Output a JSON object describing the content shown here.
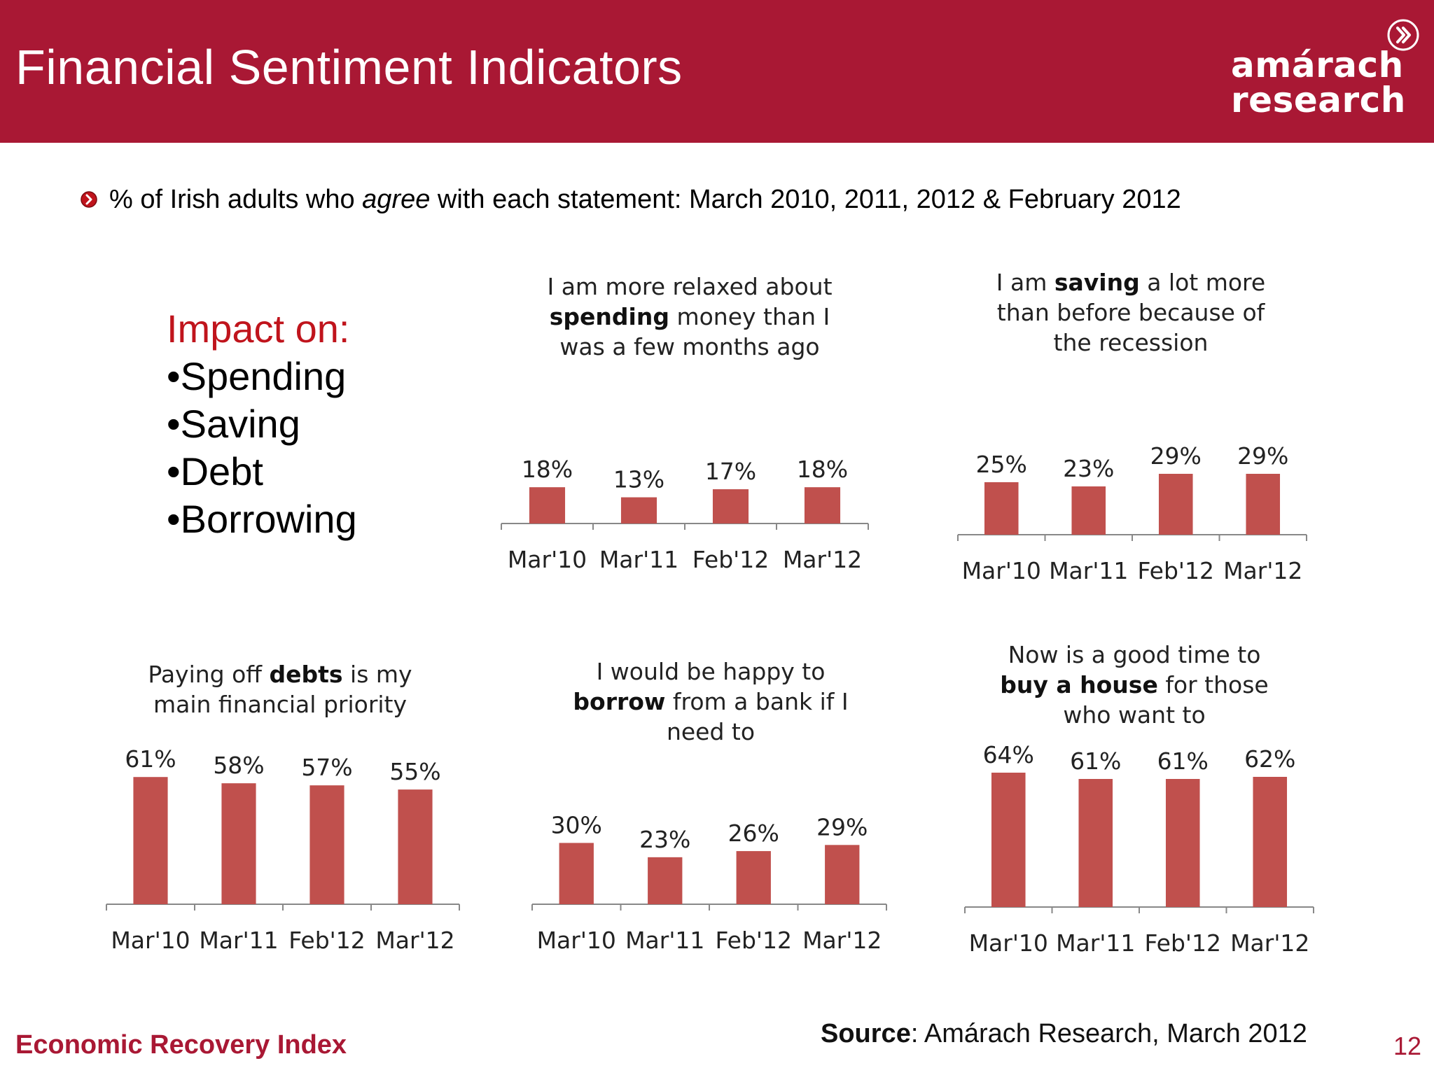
{
  "header": {
    "title": "Financial Sentiment Indicators",
    "logo_line1": "amárach",
    "logo_line2": "research",
    "logo_icon": "chevron-circle-icon"
  },
  "subtitle": {
    "prefix": "% of Irish adults who ",
    "emphasis": "agree",
    "suffix": " with each statement: March 2010, 2011, 2012 & February 2012"
  },
  "impact": {
    "heading": "Impact on:",
    "items": [
      "•Spending",
      "•Saving",
      "•Debt",
      "•Borrowing"
    ]
  },
  "colors": {
    "bar": "#c0504d",
    "header": "#a91834",
    "accent_red": "#c0141c",
    "axis": "#888888"
  },
  "chart_data": [
    {
      "type": "bar",
      "title_lines": [
        [
          {
            "text": "I am more relaxed about",
            "bold": false
          }
        ],
        [
          {
            "text": "spending",
            "bold": true
          },
          {
            "text": " money than I",
            "bold": false
          }
        ],
        [
          {
            "text": "was a few months ago",
            "bold": false
          }
        ]
      ],
      "categories": [
        "Mar'10",
        "Mar'11",
        "Feb'12",
        "Mar'12"
      ],
      "values": [
        18,
        13,
        17,
        18
      ],
      "value_labels": [
        "18%",
        "13%",
        "17%",
        "18%"
      ],
      "ylim": [
        0,
        100
      ]
    },
    {
      "type": "bar",
      "title_lines": [
        [
          {
            "text": "I am ",
            "bold": false
          },
          {
            "text": "saving",
            "bold": true
          },
          {
            "text": " a lot more",
            "bold": false
          }
        ],
        [
          {
            "text": "than before because of",
            "bold": false
          }
        ],
        [
          {
            "text": "the recession",
            "bold": false
          }
        ]
      ],
      "categories": [
        "Mar'10",
        "Mar'11",
        "Feb'12",
        "Mar'12"
      ],
      "values": [
        25,
        23,
        29,
        29
      ],
      "value_labels": [
        "25%",
        "23%",
        "29%",
        "29%"
      ],
      "ylim": [
        0,
        100
      ]
    },
    {
      "type": "bar",
      "title_lines": [
        [
          {
            "text": "Paying  off ",
            "bold": false
          },
          {
            "text": "debts",
            "bold": true
          },
          {
            "text": " is my",
            "bold": false
          }
        ],
        [
          {
            "text": "main financial priority",
            "bold": false
          }
        ]
      ],
      "categories": [
        "Mar'10",
        "Mar'11",
        "Feb'12",
        "Mar'12"
      ],
      "values": [
        61,
        58,
        57,
        55
      ],
      "value_labels": [
        "61%",
        "58%",
        "57%",
        "55%"
      ],
      "ylim": [
        0,
        100
      ]
    },
    {
      "type": "bar",
      "title_lines": [
        [
          {
            "text": "I would be happy to",
            "bold": false
          }
        ],
        [
          {
            "text": "borrow",
            "bold": true
          },
          {
            "text": " from a bank if I",
            "bold": false
          }
        ],
        [
          {
            "text": "need to",
            "bold": false
          }
        ]
      ],
      "categories": [
        "Mar'10",
        "Mar'11",
        "Feb'12",
        "Mar'12"
      ],
      "values": [
        30,
        23,
        26,
        29
      ],
      "value_labels": [
        "30%",
        "23%",
        "26%",
        "29%"
      ],
      "ylim": [
        0,
        100
      ]
    },
    {
      "type": "bar",
      "title_lines": [
        [
          {
            "text": "Now is a good time to",
            "bold": false
          }
        ],
        [
          {
            "text": "buy a house",
            "bold": true
          },
          {
            "text": " for those",
            "bold": false
          }
        ],
        [
          {
            "text": "who want to",
            "bold": false
          }
        ]
      ],
      "categories": [
        "Mar'10",
        "Mar'11",
        "Feb'12",
        "Mar'12"
      ],
      "values": [
        64,
        61,
        61,
        62
      ],
      "value_labels": [
        "64%",
        "61%",
        "61%",
        "62%"
      ],
      "ylim": [
        0,
        100
      ]
    }
  ],
  "footer": {
    "left": "Economic Recovery Index",
    "source_label": "Source",
    "source_text": ": Amárach Research, March 2012",
    "page_number": "12"
  }
}
